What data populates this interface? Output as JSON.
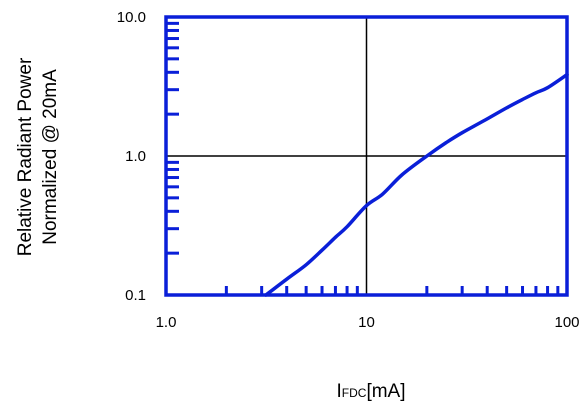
{
  "chart_data": {
    "type": "line",
    "title": "",
    "xlabel": {
      "main": "I",
      "subscript": "FDC",
      "unit": "[mA]"
    },
    "ylabel_lines": [
      "Relative Radiant Power",
      "Normalized @ 20mA"
    ],
    "x_scale": "log",
    "y_scale": "log",
    "xlim": [
      1,
      100
    ],
    "ylim": [
      0.1,
      10
    ],
    "x_tick_labels": [
      {
        "value": 1,
        "label": "1.0"
      },
      {
        "value": 10,
        "label": "10"
      },
      {
        "value": 100,
        "label": "100"
      }
    ],
    "y_tick_labels": [
      {
        "value": 10,
        "label": "10.0"
      },
      {
        "value": 1,
        "label": "1.0"
      },
      {
        "value": 0.1,
        "label": "0.1"
      }
    ],
    "grid_lines": {
      "x": [
        10
      ],
      "y": [
        1
      ]
    },
    "series": [
      {
        "x": [
          3.15,
          4,
          5,
          6,
          7,
          8,
          10,
          12,
          15,
          20,
          25,
          30,
          40,
          50,
          60,
          70,
          80,
          100
        ],
        "y": [
          0.1,
          0.13,
          0.165,
          0.21,
          0.26,
          0.31,
          0.44,
          0.53,
          0.73,
          1.0,
          1.25,
          1.47,
          1.85,
          2.22,
          2.55,
          2.85,
          3.1,
          3.85
        ]
      }
    ],
    "colors": {
      "line": "#0a1fd8",
      "frame": "#0a1fd8",
      "grid": "#000000",
      "text": "#000000"
    }
  }
}
